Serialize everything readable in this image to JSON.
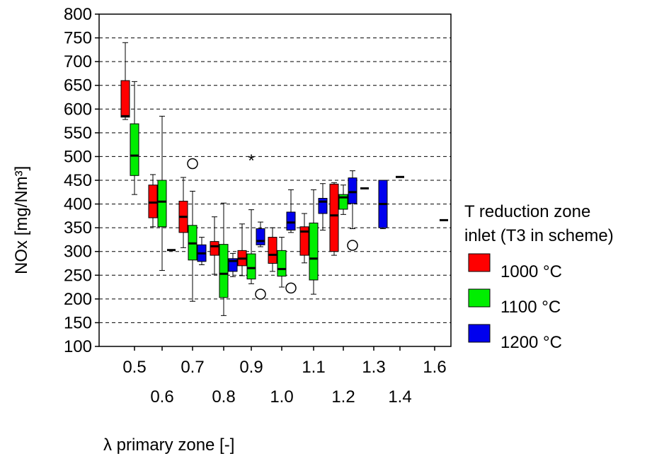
{
  "chart_data": {
    "type": "box",
    "xlabel": "λ primary zone [-]",
    "ylabel": "NOx [mg/Nm³]",
    "ylim": [
      100,
      800
    ],
    "yticks": [
      100,
      150,
      200,
      250,
      300,
      350,
      400,
      450,
      500,
      550,
      600,
      650,
      700,
      750,
      800
    ],
    "categories": [
      "0.5",
      "0.6",
      "0.7",
      "0.8",
      "0.9",
      "1.0",
      "1.1",
      "1.2",
      "1.3",
      "1.4",
      "1.6"
    ],
    "grid": "horizontal dashed",
    "legend": {
      "title_lines": [
        "T reduction zone",
        "inlet (T3 in scheme)"
      ],
      "placement": "right"
    },
    "series": [
      {
        "name": "1000 °C",
        "color": "#ff0000",
        "boxes": [
          {
            "category": "0.5",
            "min": 578,
            "q1": 583,
            "median": 585,
            "q3": 660,
            "max": 740
          },
          {
            "category": "0.6",
            "min": 352,
            "q1": 371,
            "median": 403,
            "q3": 440,
            "max": 462
          },
          {
            "category": "0.7",
            "min": 308,
            "q1": 340,
            "median": 373,
            "q3": 406,
            "max": 456
          },
          {
            "category": "0.8",
            "min": 252,
            "q1": 292,
            "median": 311,
            "q3": 321,
            "max": 373
          },
          {
            "category": "0.9",
            "min": 249,
            "q1": 270,
            "median": 285,
            "q3": 302,
            "max": 358
          },
          {
            "category": "1.0",
            "min": 258,
            "q1": 275,
            "median": 293,
            "q3": 330,
            "max": 350
          },
          {
            "category": "1.1",
            "min": 276,
            "q1": 292,
            "median": 342,
            "q3": 352,
            "max": 380
          },
          {
            "category": "1.2",
            "min": 292,
            "q1": 300,
            "median": 376,
            "q3": 442,
            "max": 445
          },
          {
            "category": "1.3",
            "min": 433,
            "q1": 433,
            "median": 433,
            "q3": 433,
            "max": 433
          }
        ]
      },
      {
        "name": "1100 °C",
        "color": "#00ee00",
        "boxes": [
          {
            "category": "0.5",
            "min": 420,
            "q1": 460,
            "median": 502,
            "q3": 569,
            "max": 658
          },
          {
            "category": "0.6",
            "min": 260,
            "q1": 352,
            "median": 405,
            "q3": 450,
            "max": 585
          },
          {
            "category": "0.7",
            "min": 195,
            "q1": 282,
            "median": 317,
            "q3": 355,
            "max": 427,
            "outliers": [
              {
                "value": 485,
                "marker": "circle"
              }
            ]
          },
          {
            "category": "0.8",
            "min": 165,
            "q1": 203,
            "median": 253,
            "q3": 315,
            "max": 402
          },
          {
            "category": "0.9",
            "min": 232,
            "q1": 242,
            "median": 265,
            "q3": 295,
            "max": 388,
            "outliers": [
              {
                "value": 493,
                "marker": "star"
              }
            ]
          },
          {
            "category": "1.0",
            "min": 225,
            "q1": 248,
            "median": 263,
            "q3": 302,
            "max": 330
          },
          {
            "category": "1.1",
            "min": 210,
            "q1": 240,
            "median": 285,
            "q3": 360,
            "max": 430
          },
          {
            "category": "1.2",
            "min": 378,
            "q1": 389,
            "median": 414,
            "q3": 420,
            "max": 440
          },
          {
            "category": "1.4",
            "min": 457,
            "q1": 457,
            "median": 457,
            "q3": 457,
            "max": 457
          }
        ]
      },
      {
        "name": "1200 °C",
        "color": "#0000ee",
        "boxes": [
          {
            "category": "0.6",
            "min": 303,
            "q1": 303,
            "median": 303,
            "q3": 303,
            "max": 303
          },
          {
            "category": "0.7",
            "min": 272,
            "q1": 279,
            "median": 296,
            "q3": 314,
            "max": 330
          },
          {
            "category": "0.8",
            "min": 247,
            "q1": 258,
            "median": 280,
            "q3": 285,
            "max": 296
          },
          {
            "category": "0.9",
            "min": 310,
            "q1": 314,
            "median": 322,
            "q3": 348,
            "max": 362,
            "outliers": [
              {
                "value": 210,
                "marker": "circle"
              }
            ]
          },
          {
            "category": "1.0",
            "min": 340,
            "q1": 345,
            "median": 361,
            "q3": 383,
            "max": 430,
            "outliers": [
              {
                "value": 223,
                "marker": "circle"
              }
            ]
          },
          {
            "category": "1.1",
            "min": 345,
            "q1": 380,
            "median": 405,
            "q3": 412,
            "max": 443
          },
          {
            "category": "1.2",
            "min": 348,
            "q1": 401,
            "median": 425,
            "q3": 455,
            "max": 470,
            "outliers": [
              {
                "value": 313,
                "marker": "circle"
              }
            ]
          },
          {
            "category": "1.3",
            "min": 348,
            "q1": 350,
            "median": 400,
            "q3": 450,
            "max": 450
          },
          {
            "category": "1.6",
            "min": 366,
            "q1": 366,
            "median": 366,
            "q3": 366,
            "max": 366
          }
        ]
      }
    ]
  }
}
